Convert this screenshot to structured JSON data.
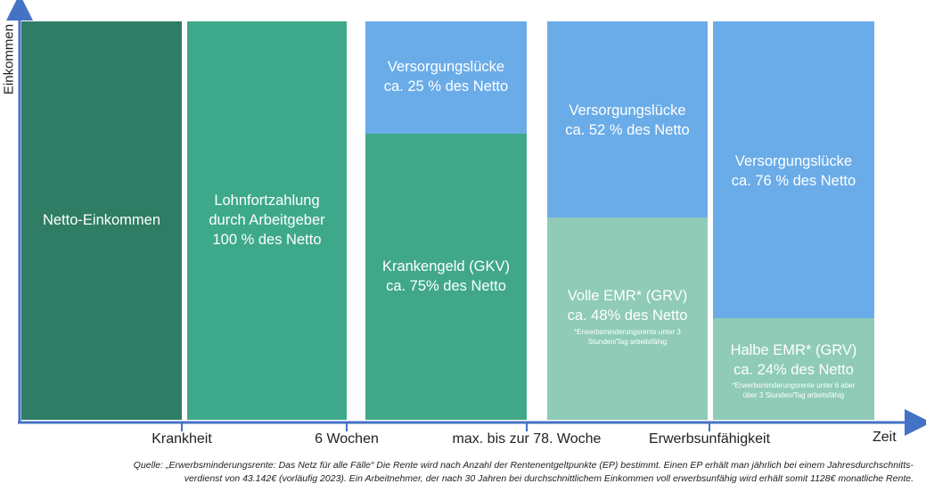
{
  "colors": {
    "netto": "#2e7d64",
    "lohn": "#3ea98a",
    "kranken": "#40a889",
    "emr": "#8fcbb7",
    "gap": "#6aace8",
    "axis": "#4472c4"
  },
  "axes": {
    "y_label": "Einkommen",
    "x_label": "Zeit"
  },
  "ticks": [
    "Krankheit",
    "6 Wochen",
    "max. bis zur 78. Woche",
    "Erwerbsunfähigkeit"
  ],
  "blocks": {
    "netto": {
      "line1": "Netto-Einkommen"
    },
    "lohn": {
      "line1": "Lohnfortzahlung",
      "line2": "durch Arbeitgeber",
      "line3": "100 % des Netto"
    },
    "gap25": {
      "line1": "Versorgungslücke",
      "line2": "ca. 25 % des Netto",
      "share": 25
    },
    "kranken": {
      "line1": "Krankengeld (GKV)",
      "line2": "ca. 75% des Netto",
      "share": 75
    },
    "gap52": {
      "line1": "Versorgungslücke",
      "line2": "ca. 52 % des Netto",
      "share": 52
    },
    "voll": {
      "line1": "Volle EMR* (GRV)",
      "line2": "ca. 48% des Netto",
      "note1": "*Erwerbsminderungsrente unter 3",
      "note2": "Stunden/Tag arbeitsfähig",
      "share": 48
    },
    "gap76": {
      "line1": "Versorgungslücke",
      "line2": "ca. 76 % des Netto",
      "share": 76
    },
    "halb": {
      "line1": "Halbe EMR* (GRV)",
      "line2": "ca. 24% des Netto",
      "note1": "*Erwerbsminderungsrente unter 6 aber",
      "note2": "über 3 Stunden/Tag arbeitsfähig",
      "share": 24
    }
  },
  "source": {
    "line1": "Quelle: „Erwerbsminderungsrente: Das Netz für alle Fälle“ Die Rente wird nach Anzahl der Rentenentgeltpunkte (EP) bestimmt. Einen EP erhält man jährlich bei einem Jahresdurchschnitts-",
    "line2": "verdienst von 43.142€ (vorläufig 2023). Ein Arbeitnehmer, der nach 30 Jahren bei durchschnittlichem Einkommen voll erwerbsunfähig wird erhält somit 1128€ monatliche Rente."
  }
}
